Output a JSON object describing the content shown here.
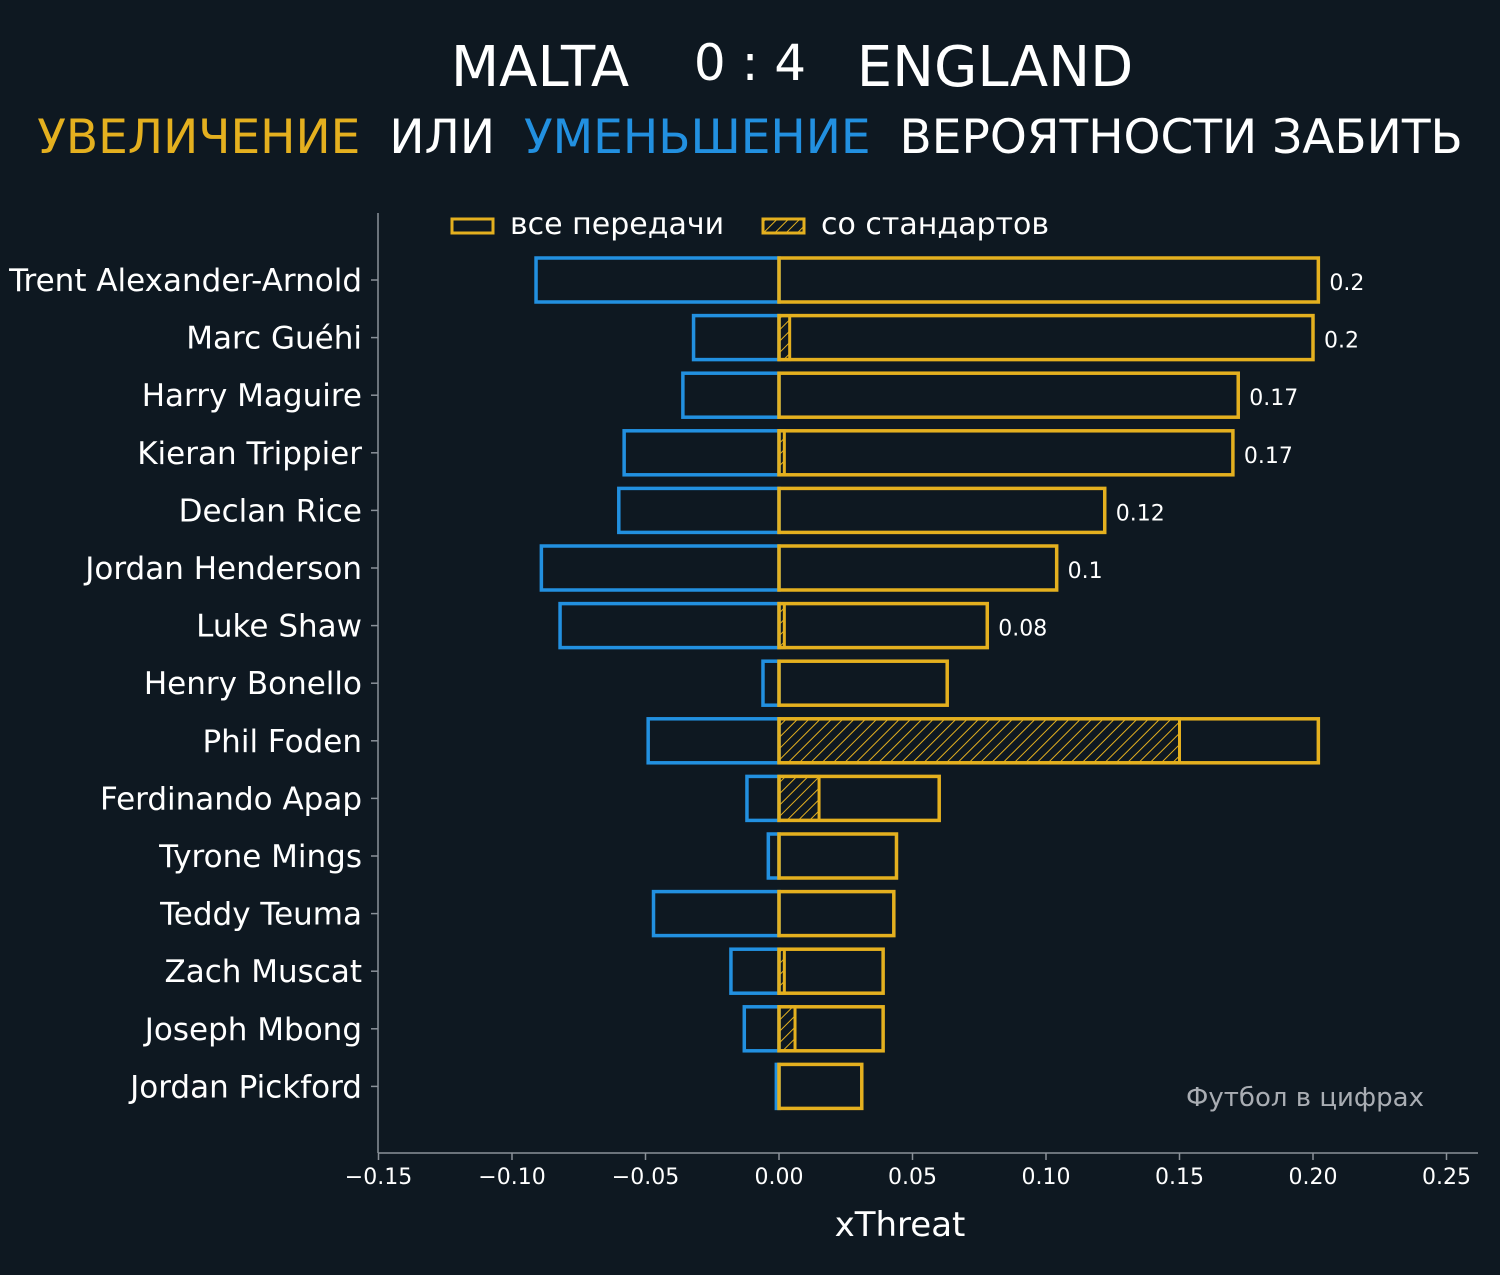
{
  "header": {
    "home_team": "MALTA",
    "score": "0 : 4",
    "away_team": "ENGLAND",
    "subtitle_part1": "УВЕЛИЧЕНИЕ",
    "subtitle_part2": "ИЛИ",
    "subtitle_part3": "УМЕНЬШЕНИЕ",
    "subtitle_part4": "ВЕРОЯТНОСТИ ЗАБИТЬ"
  },
  "watermark": "Футбол в цифрах",
  "colors": {
    "background": "#0e1821",
    "positive": "#e4b01f",
    "negative": "#2290e0",
    "text": "#ffffff",
    "axis": "#8a9199",
    "watermark": "#a9adb3"
  },
  "chart_data": {
    "type": "bar",
    "orientation": "horizontal",
    "xlabel": "xThreat",
    "ylabel": "",
    "xlim": [
      -0.15,
      0.26
    ],
    "xticks": [
      -0.15,
      -0.1,
      -0.05,
      0.0,
      0.05,
      0.1,
      0.15,
      0.2,
      0.25
    ],
    "xtick_labels": [
      "−0.15",
      "−0.10",
      "−0.05",
      "0.00",
      "0.05",
      "0.10",
      "0.15",
      "0.20",
      "0.25"
    ],
    "grid": false,
    "legend": {
      "placement": "top-center",
      "entries": [
        {
          "label": "все передачи",
          "style": "outline"
        },
        {
          "label": "со стандартов",
          "style": "hatched"
        }
      ]
    },
    "categories": [
      "Trent Alexander-Arnold",
      "Marc Guéhi",
      "Harry Maguire",
      "Kieran Trippier",
      "Declan Rice",
      "Jordan Henderson",
      "Luke Shaw",
      "Henry Bonello",
      "Phil Foden",
      "Ferdinando Apap",
      "Tyrone Mings",
      "Teddy Teuma",
      "Zach Muscat",
      "Joseph Mbong",
      "Jordan Pickford"
    ],
    "series": [
      {
        "name": "все передачи",
        "values": [
          0.202,
          0.2,
          0.172,
          0.17,
          0.122,
          0.104,
          0.078,
          0.063,
          0.202,
          0.06,
          0.044,
          0.043,
          0.039,
          0.039,
          0.031
        ]
      },
      {
        "name": "со стандартов",
        "values": [
          0.0,
          0.004,
          0.0,
          0.002,
          0.0,
          0.0,
          0.002,
          0.0,
          0.15,
          0.015,
          0.0,
          0.0,
          0.002,
          0.006,
          0.0
        ]
      },
      {
        "values": [
          -0.091,
          -0.032,
          -0.036,
          -0.058,
          -0.06,
          -0.089,
          -0.082,
          -0.006,
          -0.049,
          -0.012,
          -0.004,
          -0.047,
          -0.018,
          -0.013,
          -0.001
        ]
      }
    ],
    "data_labels": [
      "0.2",
      "0.2",
      "0.17",
      "0.17",
      "0.12",
      "0.1",
      "0.08",
      "",
      "",
      "",
      "",
      "",
      "",
      "",
      ""
    ]
  }
}
